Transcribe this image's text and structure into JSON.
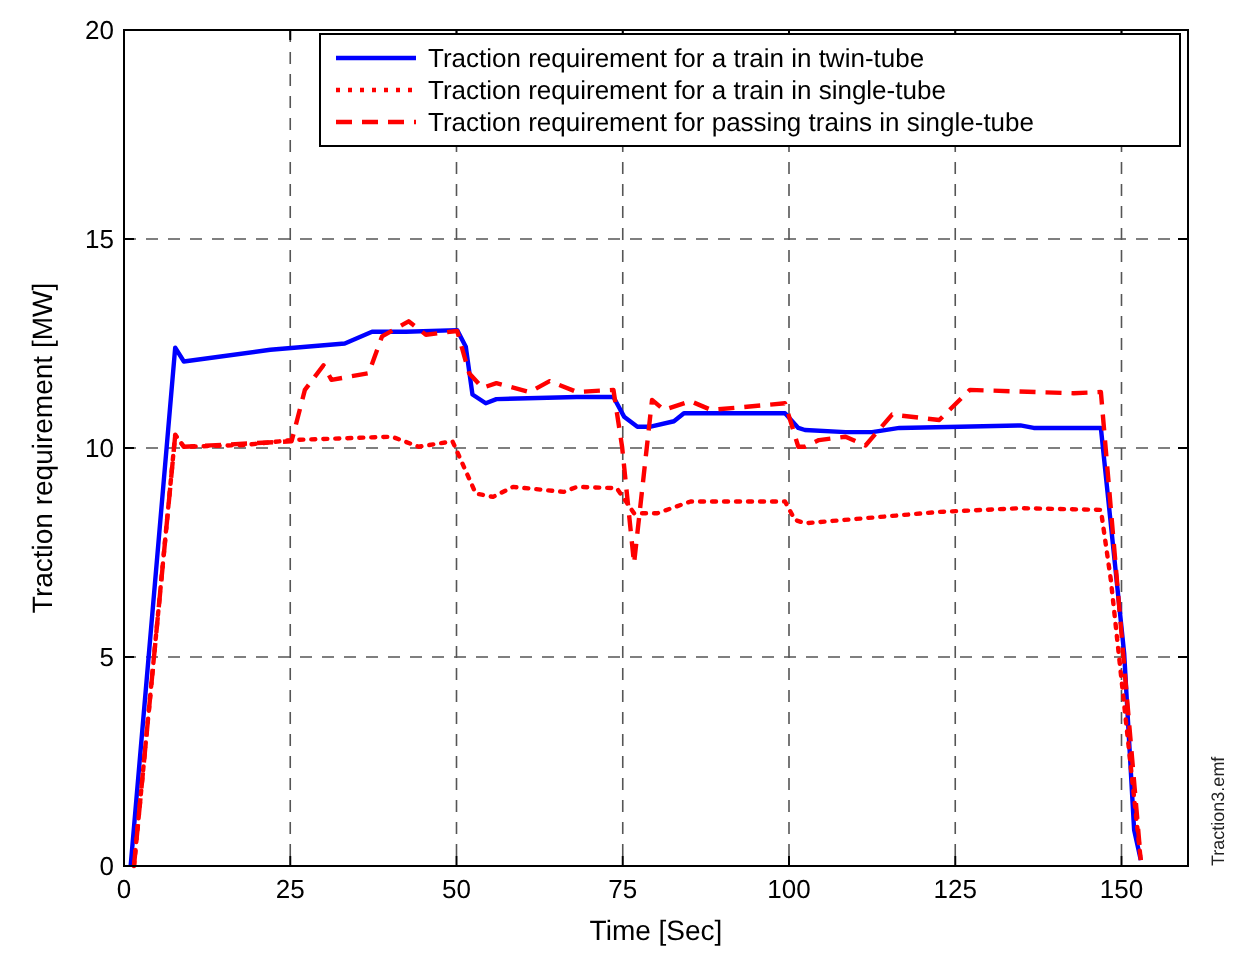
{
  "chart_data": {
    "type": "line",
    "xlabel": "Time [Sec]",
    "ylabel": "Traction requirement [MW]",
    "xlim": [
      0,
      160
    ],
    "ylim": [
      0,
      20
    ],
    "xticks": [
      0,
      25,
      50,
      75,
      100,
      125,
      150
    ],
    "yticks": [
      0,
      5,
      10,
      15,
      20
    ],
    "grid": true,
    "legend": "top right",
    "annotations": [
      "Traction3.emf"
    ],
    "series": [
      {
        "name": "Traction requirement for a train in twin-tube",
        "color": "#0000ff",
        "line_style": "solid",
        "x": [
          1,
          7.7,
          9,
          22,
          33.2,
          37.3,
          42.4,
          50.1,
          51.4,
          52.4,
          54.4,
          56,
          68.1,
          73.6,
          75.2,
          77.2,
          79.2,
          82.7,
          84.2,
          99.4,
          101.4,
          102.4,
          108.5,
          112.5,
          116.6,
          125.7,
          134.8,
          136.8,
          146.9,
          150.4,
          151.9,
          152.9
        ],
        "values": [
          0,
          12.4,
          12.07,
          12.35,
          12.5,
          12.78,
          12.78,
          12.82,
          12.42,
          11.28,
          11.07,
          11.17,
          11.22,
          11.22,
          10.75,
          10.51,
          10.51,
          10.64,
          10.83,
          10.83,
          10.48,
          10.43,
          10.38,
          10.38,
          10.48,
          10.51,
          10.54,
          10.48,
          10.48,
          5.09,
          0.86,
          0.14
        ]
      },
      {
        "name": "Traction requirement for a train in single-tube",
        "color": "#ff0000",
        "line_style": "dotted",
        "x": [
          1.5,
          7.7,
          9,
          18,
          25.2,
          40.3,
          44.3,
          49.4,
          52.9,
          55.5,
          58.5,
          66.1,
          68.1,
          74.1,
          76.7,
          80.2,
          85.2,
          99.4,
          100.9,
          102.4,
          122.6,
          134.8,
          146.9,
          148.4,
          152.9
        ],
        "values": [
          0,
          10.32,
          10.03,
          10.07,
          10.19,
          10.27,
          10.03,
          10.16,
          8.91,
          8.83,
          9.07,
          8.95,
          9.07,
          9.04,
          8.44,
          8.44,
          8.72,
          8.72,
          8.28,
          8.2,
          8.47,
          8.56,
          8.52,
          6.84,
          0.14
        ]
      },
      {
        "name": "Traction requirement for passing trains in single-tube",
        "color": "#ff0000",
        "line_style": "dashed",
        "x": [
          1.5,
          7.7,
          9,
          25.2,
          27.2,
          30,
          31.2,
          36.8,
          38.8,
          42.8,
          45.4,
          50.1,
          51.9,
          53.9,
          56,
          61,
          64,
          68.1,
          73.6,
          74.9,
          76.7,
          79.4,
          81.2,
          85.2,
          88.3,
          99.4,
          101.4,
          102.4,
          104.5,
          108.5,
          111.5,
          115.5,
          122.6,
          127.2,
          142.8,
          146.9,
          152.9
        ],
        "values": [
          0,
          10.3,
          10.03,
          10.16,
          11.39,
          11.98,
          11.63,
          11.79,
          12.67,
          13.03,
          12.71,
          12.8,
          11.79,
          11.44,
          11.55,
          11.34,
          11.6,
          11.34,
          11.39,
          10.03,
          7.24,
          11.15,
          10.91,
          11.12,
          10.91,
          11.07,
          10.03,
          10.03,
          10.19,
          10.27,
          10.06,
          10.8,
          10.67,
          11.39,
          11.31,
          11.34,
          0.14
        ]
      }
    ]
  }
}
